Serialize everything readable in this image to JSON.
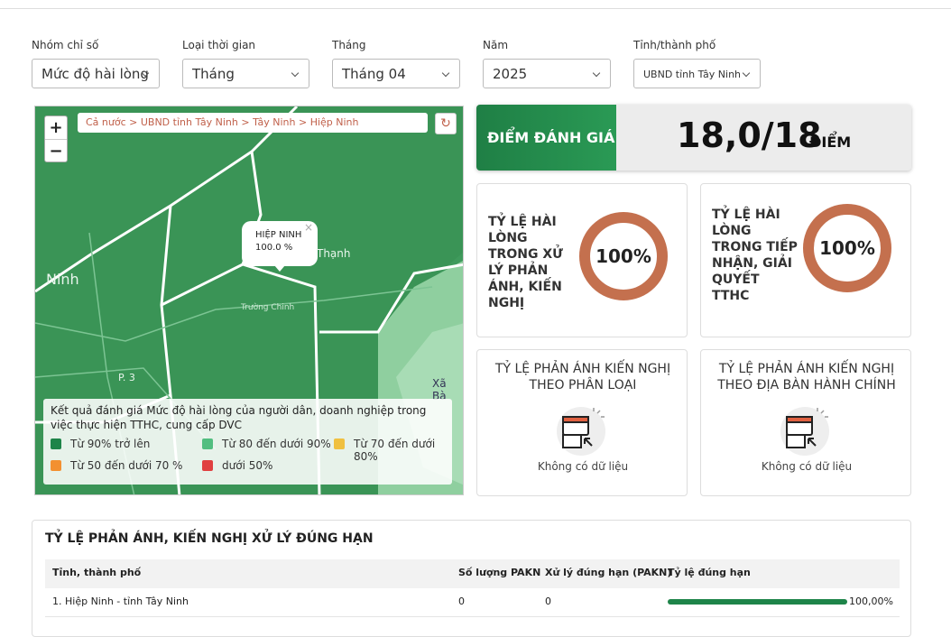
{
  "filters": [
    {
      "label": "Nhóm chỉ số",
      "value": "Mức độ hài lòng"
    },
    {
      "label": "Loại thời gian",
      "value": "Tháng"
    },
    {
      "label": "Tháng",
      "value": "Tháng 04"
    },
    {
      "label": "Năm",
      "value": "2025"
    },
    {
      "label": "Tỉnh/thành phố",
      "value": "UBND tỉnh Tây Ninh"
    }
  ],
  "map": {
    "zoom_in": "+",
    "zoom_out": "−",
    "breadcrumb": "Cả nước > UBND tỉnh Tây Ninh > Tây Ninh > Hiệp Ninh",
    "popup": {
      "name": "HIỆP NINH",
      "value": "100.0 %"
    },
    "place_labels": [
      "Ninh",
      "Thạnh",
      "Xã Bà",
      "Trường Chinh",
      "P. 3"
    ],
    "legend": {
      "title": "Kết quả đánh giá Mức độ hài lòng của người dân, doanh nghiệp trong việc thực hiện TTHC, cung cấp DVC",
      "items": [
        {
          "label": "Từ 90% trở lên",
          "color": "#1e8449"
        },
        {
          "label": "Từ 80 đến dưới 90%",
          "color": "#52be80"
        },
        {
          "label": "Từ 70 đến dưới 80%",
          "color": "#f0c040"
        },
        {
          "label": "Từ 50 đến dưới 70 %",
          "color": "#f39030"
        },
        {
          "label": "dưới 50%",
          "color": "#e04040"
        }
      ]
    }
  },
  "score": {
    "label": "ĐIỂM ĐÁNH GIÁ",
    "value": "18,0/18",
    "unit": "ĐIỂM"
  },
  "donuts": [
    {
      "title": "TỶ LỆ HÀI LÒNG TRONG XỬ LÝ PHẢN ÁNH, KIẾN NGHỊ",
      "value": 100,
      "value_label": "100%",
      "color": "#c4704e"
    },
    {
      "title": "TỶ LỆ HÀI LÒNG TRONG TIẾP NHẬN, GIẢI QUYẾT TTHC",
      "value": 100,
      "value_label": "100%",
      "color": "#c4704e"
    }
  ],
  "empty_cards": [
    {
      "title": "TỶ LỆ PHẢN ÁNH KIẾN NGHỊ THEO PHÂN LOẠI",
      "message": "Không có dữ liệu"
    },
    {
      "title": "TỶ LỆ PHẢN ÁNH KIẾN NGHỊ THEO ĐỊA BÀN HÀNH CHÍNH",
      "message": "Không có dữ liệu"
    }
  ],
  "table": {
    "title": "TỶ LỆ PHẢN ÁNH, KIẾN NGHỊ XỬ LÝ ĐÚNG HẠN",
    "headers": [
      "Tỉnh, thành phố",
      "Số lượng PAKN",
      "Xử lý đúng hạn (PAKN)",
      "Tỷ lệ đúng hạn"
    ],
    "rows": [
      {
        "name": "1. Hiệp Ninh - tỉnh Tây Ninh",
        "count": "0",
        "on_time": "0",
        "rate": 100,
        "rate_label": "100,00%",
        "color": "#1e8449"
      }
    ]
  }
}
